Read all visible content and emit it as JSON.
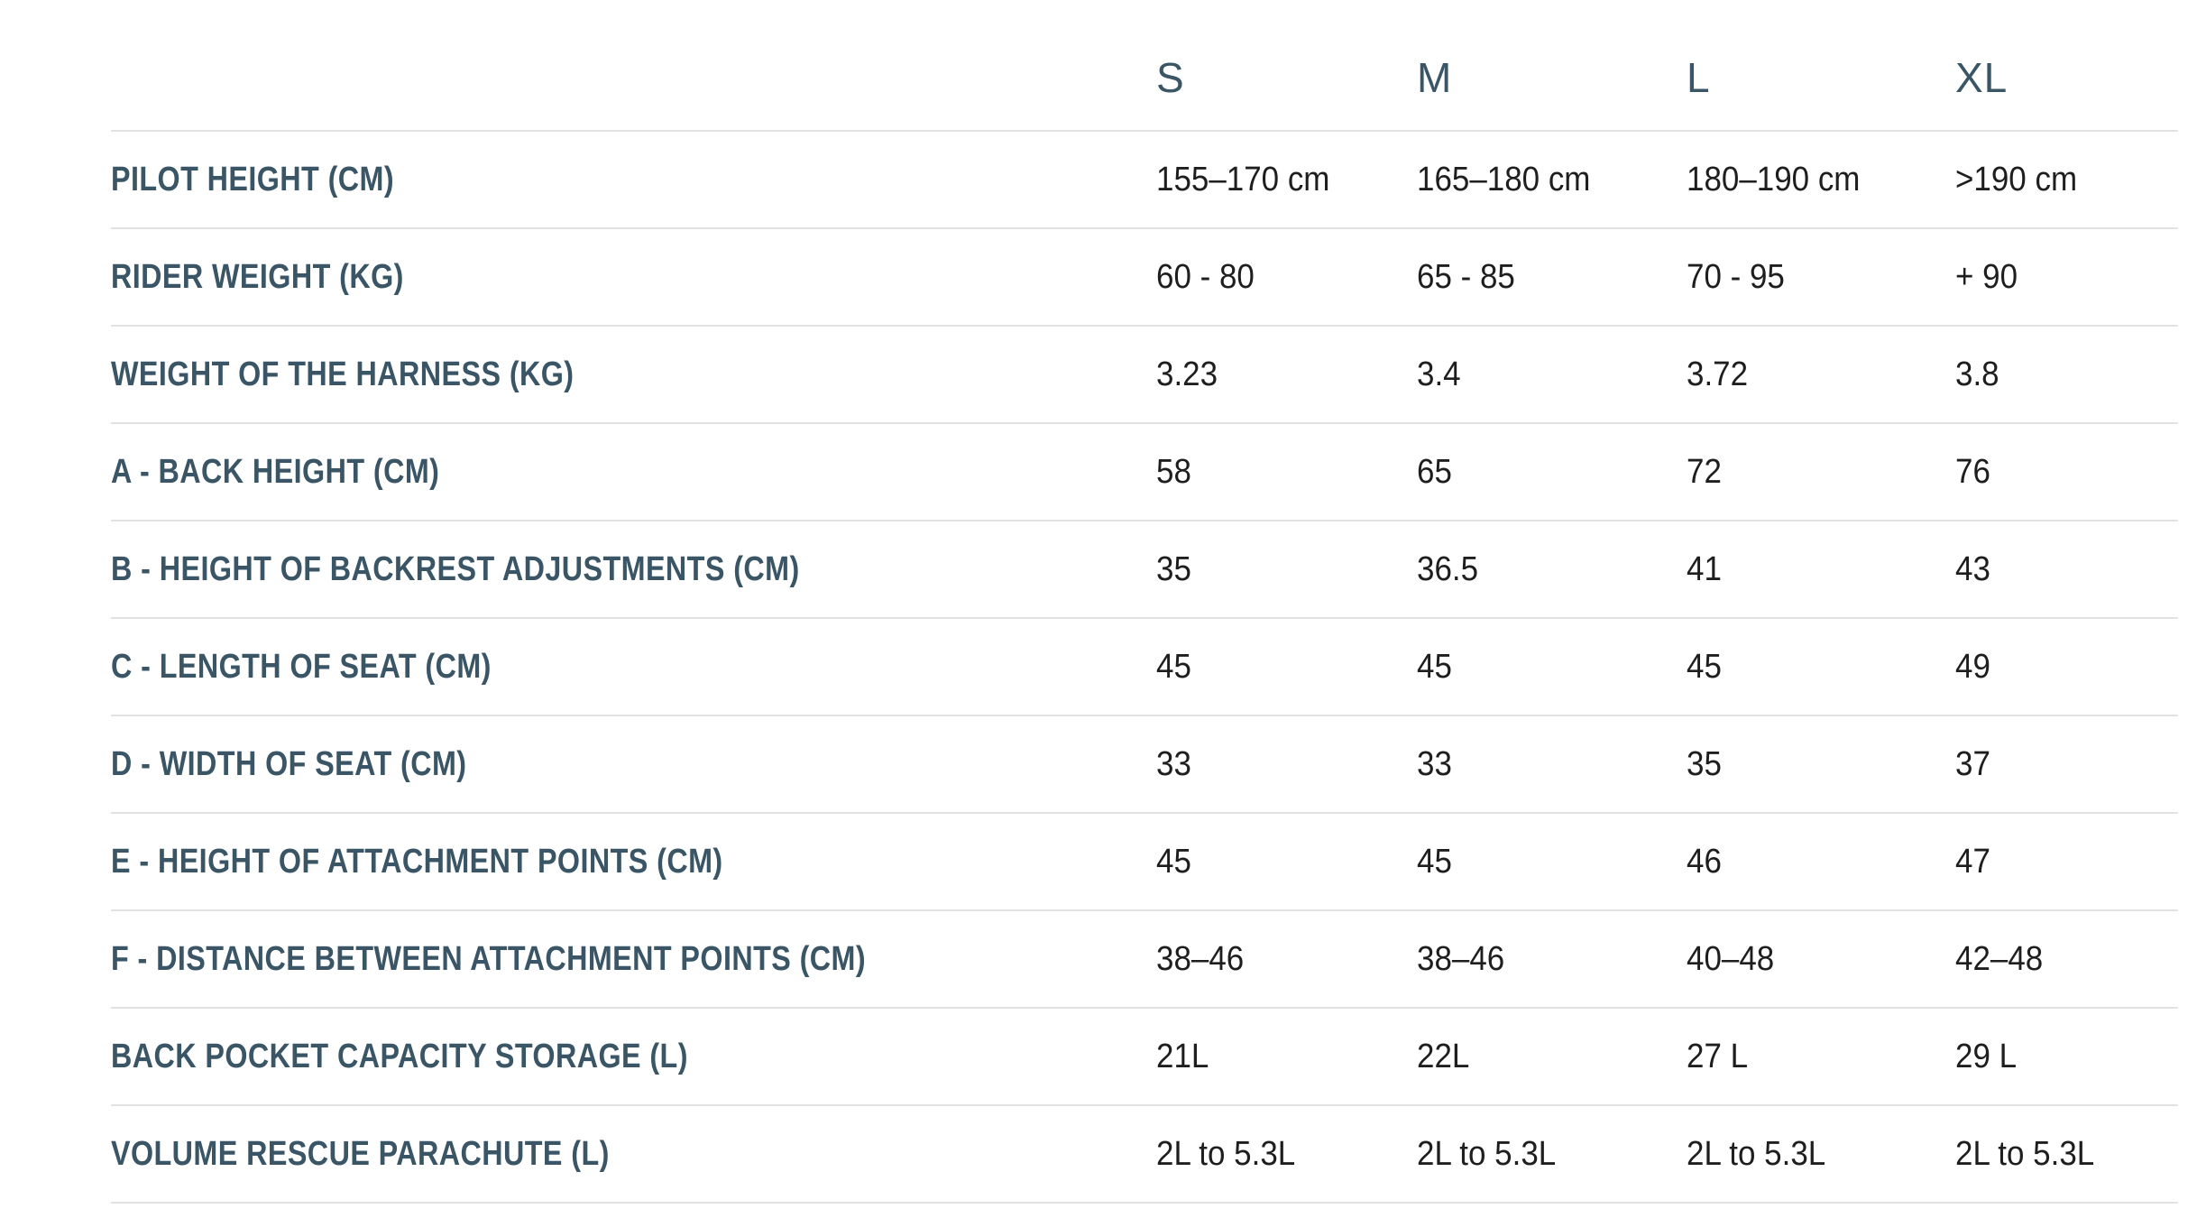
{
  "table": {
    "columns": [
      "S",
      "M",
      "L",
      "XL"
    ],
    "rows": [
      {
        "label": "PILOT HEIGHT (CM)",
        "values": [
          "155–170 cm",
          "165–180 cm",
          "180–190 cm",
          ">190 cm"
        ]
      },
      {
        "label": "RIDER WEIGHT (KG)",
        "values": [
          "60 - 80",
          "65 - 85",
          "70 - 95",
          "+ 90"
        ]
      },
      {
        "label": "WEIGHT OF THE HARNESS (KG)",
        "values": [
          "3.23",
          "3.4",
          "3.72",
          "3.8"
        ]
      },
      {
        "label": "A - BACK HEIGHT (CM)",
        "values": [
          "58",
          "65",
          "72",
          "76"
        ]
      },
      {
        "label": "B - HEIGHT OF BACKREST ADJUSTMENTS (CM)",
        "values": [
          "35",
          "36.5",
          "41",
          "43"
        ]
      },
      {
        "label": "C - LENGTH OF SEAT (CM)",
        "values": [
          "45",
          "45",
          "45",
          "49"
        ]
      },
      {
        "label": "D - WIDTH OF SEAT (CM)",
        "values": [
          "33",
          "33",
          "35",
          "37"
        ]
      },
      {
        "label": "E - HEIGHT OF ATTACHMENT POINTS (CM)",
        "values": [
          "45",
          "45",
          "46",
          "47"
        ]
      },
      {
        "label": "F - DISTANCE BETWEEN ATTACHMENT POINTS (CM)",
        "values": [
          "38–46",
          "38–46",
          "40–48",
          "42–48"
        ]
      },
      {
        "label": "BACK POCKET CAPACITY STORAGE (L)",
        "values": [
          "21L",
          "22L",
          "27 L",
          "29 L"
        ]
      },
      {
        "label": "VOLUME RESCUE PARACHUTE (L)",
        "values": [
          "2L to 5.3L",
          "2L to 5.3L",
          "2L to 5.3L",
          "2L to 5.3L"
        ]
      }
    ]
  },
  "colors": {
    "label": "#3a5565",
    "value": "#1e1e1e",
    "divider": "#e2e2e2",
    "background": "#ffffff"
  }
}
